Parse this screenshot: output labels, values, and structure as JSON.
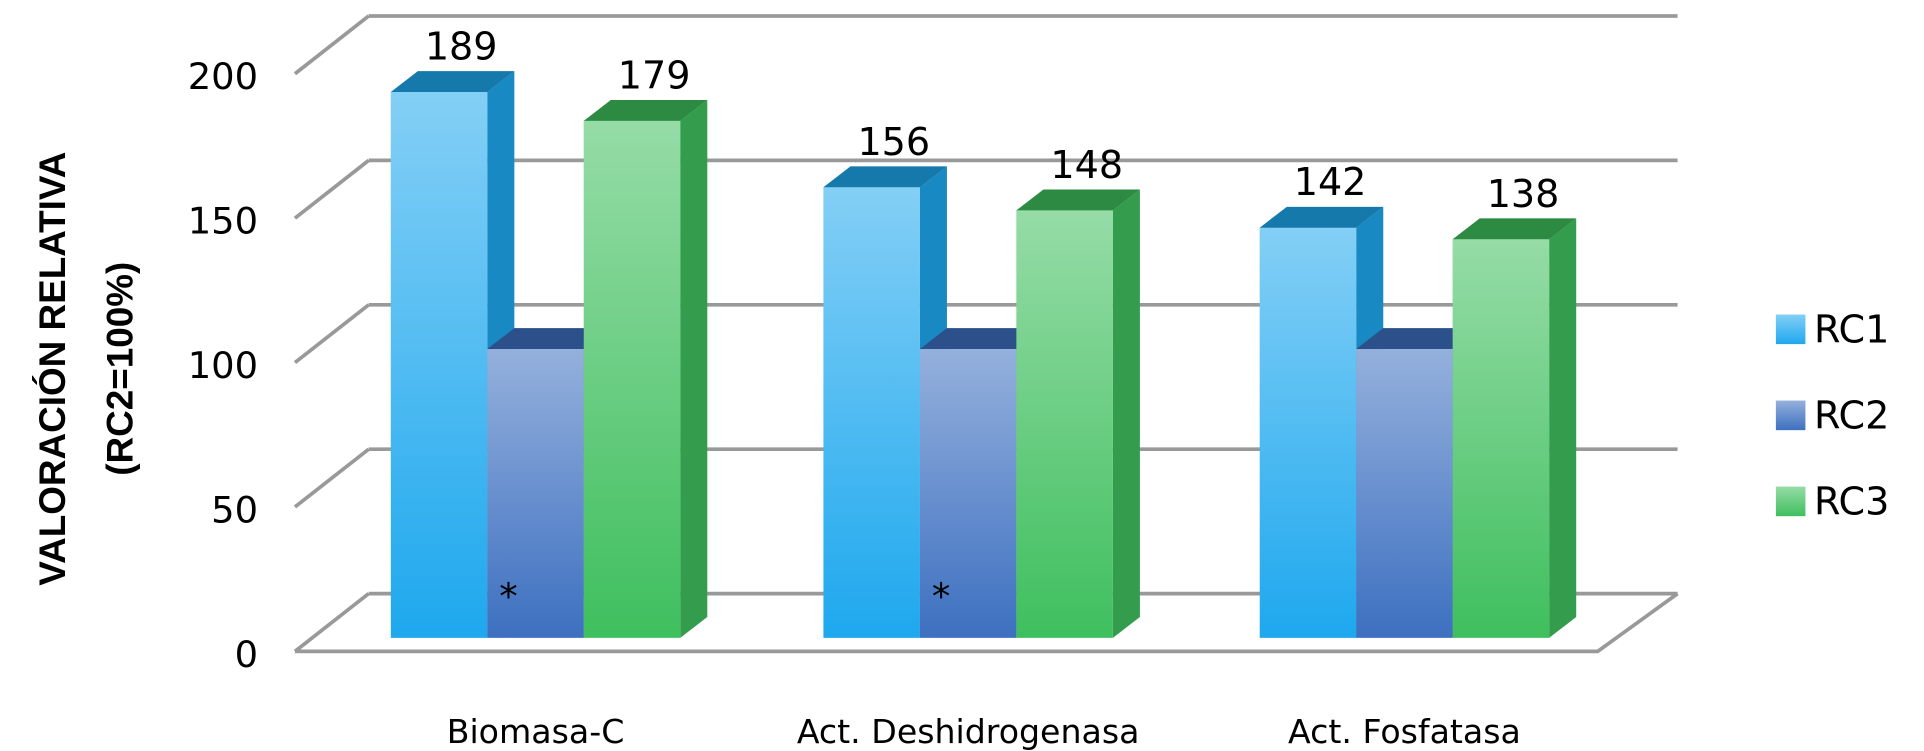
{
  "chart_data": {
    "type": "bar3d",
    "ylabel": [
      "VALORACIÓN RELATIVA",
      "(RC2=100%)"
    ],
    "categories": [
      "Biomasa-C",
      "Act. Deshidrogenasa",
      "Act. Fosfatasa"
    ],
    "series": [
      {
        "name": "RC1",
        "color": "#1ea8ee",
        "values": [
          189,
          156,
          142
        ]
      },
      {
        "name": "RC2",
        "color": "#3d70c0",
        "values": [
          100,
          100,
          100
        ]
      },
      {
        "name": "RC3",
        "color": "#3fbf5e",
        "values": [
          179,
          148,
          138
        ]
      }
    ],
    "annotations": [
      "*",
      "*"
    ],
    "ylim": [
      0,
      200
    ],
    "yticks": [
      0,
      50,
      100,
      150,
      200
    ],
    "grid": true,
    "legend": "right"
  }
}
